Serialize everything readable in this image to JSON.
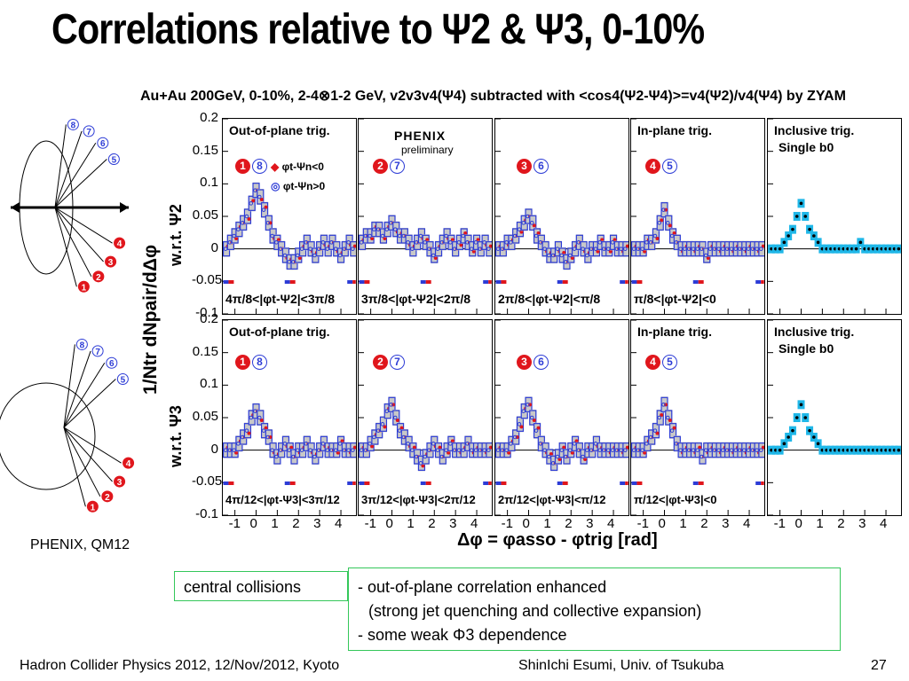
{
  "slide": {
    "title": "Correlations relative to Ψ2 & Ψ3, 0-10%",
    "subtitle": "Au+Au 200GeV, 0-10%, 2-4⊗1-2 GeV, v2v3v4(Ψ4) subtracted with <cos4(Ψ2-Ψ4)>=v4(Ψ2)/v4(Ψ4) by ZYAM",
    "phenix_logo": "PHENIX",
    "phenix_preliminary": "preliminary",
    "phenix_qm": "PHENIX, QM12",
    "ylabel_main": "1/Ntr dNpair/dΔφ",
    "ylabel_row1": "w.r.t. Ψ2",
    "ylabel_row2": "w.r.t. Ψ3",
    "xlabel": "Δφ = φasso - φtrig [rad]",
    "legend_neg": "φt-Ψn<0",
    "legend_pos": "φt-Ψn>0",
    "central_collisions": "central collisions",
    "notes": [
      "- out-of-plane correlation enhanced",
      "(strong jet quenching and collective expansion)",
      "- some weak Φ3 dependence"
    ],
    "footer_left": "Hadron Collider Physics 2012, 12/Nov/2012, Kyoto",
    "footer_mid": "ShinIchi Esumi, Univ. of Tsukuba",
    "page_number": "27"
  },
  "panels": {
    "row1_titles": [
      "Out-of-plane trig.",
      "",
      "",
      "In-plane trig.",
      "Inclusive trig."
    ],
    "row2_titles": [
      "Out-of-plane trig.",
      "",
      "",
      "In-plane trig.",
      "Inclusive trig."
    ],
    "single_b0": "Single b0",
    "row1_ranges": [
      "4π/8<|φt-Ψ2|<3π/8",
      "3π/8<|φt-Ψ2|<2π/8",
      "2π/8<|φt-Ψ2|<π/8",
      "π/8<|φt-Ψ2|<0",
      ""
    ],
    "row2_ranges": [
      "4π/12<|φt-Ψ3|<3π/12",
      "3π/12<|φt-Ψ3|<2π/12",
      "2π/12<|φt-Ψ3|<π/12",
      "π/12<|φt-Ψ3|<0",
      ""
    ],
    "numbers_filled": [
      "1",
      "2",
      "3",
      "4"
    ],
    "numbers_open": [
      "8",
      "7",
      "6",
      "5"
    ],
    "yticks": [
      "0.2",
      "0.15",
      "0.1",
      "0.05",
      "0",
      "-0.05",
      "-0.1"
    ],
    "xticks": [
      "-1",
      "0",
      "1",
      "2",
      "3",
      "4"
    ]
  },
  "diagram": {
    "top_numbers": [
      "8",
      "7",
      "6",
      "5",
      "4",
      "3",
      "2",
      "1"
    ],
    "bottom_numbers": [
      "8",
      "7",
      "6",
      "5",
      "4",
      "3",
      "2",
      "1"
    ]
  },
  "colors": {
    "red": "#e0161c",
    "blue": "#2d3cd6",
    "cyan": "#1fb7e8",
    "green_border": "#34c75a",
    "gray_band": "#c8c8c8"
  },
  "chart_data": {
    "type": "scatter",
    "x": [
      -1.4,
      -1.2,
      -1.0,
      -0.8,
      -0.6,
      -0.4,
      -0.2,
      0.0,
      0.2,
      0.4,
      0.6,
      0.8,
      1.0,
      1.2,
      1.4,
      1.6,
      1.8,
      2.0,
      2.2,
      2.4,
      2.6,
      2.8,
      3.0,
      3.2,
      3.4,
      3.6,
      3.8,
      4.0,
      4.2,
      4.4,
      4.6
    ],
    "xlabel": "Δφ = φasso - φtrig [rad]",
    "ylabel": "1/Ntr dNpair/dΔφ",
    "xlim": [
      -1.57,
      4.71
    ],
    "ylim": [
      -0.1,
      0.2
    ],
    "panels": [
      {
        "row": 1,
        "col": 1,
        "values": [
          0.0,
          0.01,
          0.02,
          0.03,
          0.04,
          0.05,
          0.07,
          0.09,
          0.08,
          0.06,
          0.04,
          0.02,
          0.01,
          0.0,
          -0.01,
          -0.02,
          -0.02,
          -0.01,
          0.0,
          0.01,
          0.0,
          -0.01,
          0.0,
          0.01,
          0.0,
          0.01,
          0.0,
          -0.01,
          0.0,
          0.01,
          0.0
        ]
      },
      {
        "row": 1,
        "col": 2,
        "values": [
          0.01,
          0.02,
          0.02,
          0.03,
          0.03,
          0.02,
          0.03,
          0.04,
          0.03,
          0.02,
          0.02,
          0.01,
          0.0,
          0.01,
          0.02,
          0.01,
          0.0,
          -0.01,
          0.0,
          0.01,
          0.02,
          0.01,
          0.0,
          0.01,
          0.02,
          0.01,
          0.0,
          0.01,
          0.0,
          0.01,
          0.0
        ]
      },
      {
        "row": 1,
        "col": 3,
        "values": [
          0.0,
          0.0,
          0.01,
          0.01,
          0.02,
          0.03,
          0.04,
          0.05,
          0.04,
          0.02,
          0.01,
          0.0,
          -0.01,
          -0.01,
          0.0,
          -0.01,
          -0.02,
          -0.01,
          0.0,
          0.01,
          0.0,
          -0.01,
          0.0,
          0.0,
          0.01,
          0.0,
          0.0,
          0.01,
          0.0,
          0.0,
          0.0
        ]
      },
      {
        "row": 1,
        "col": 4,
        "values": [
          0.0,
          0.0,
          0.0,
          0.01,
          0.01,
          0.02,
          0.04,
          0.06,
          0.04,
          0.02,
          0.01,
          0.0,
          0.0,
          0.0,
          0.0,
          0.0,
          0.0,
          -0.01,
          0.0,
          0.0,
          0.0,
          0.0,
          0.0,
          0.0,
          0.0,
          0.0,
          0.0,
          0.0,
          0.0,
          0.0,
          0.0
        ]
      },
      {
        "row": 1,
        "col": 5,
        "values": [
          0.0,
          0.0,
          0.0,
          0.01,
          0.02,
          0.03,
          0.05,
          0.07,
          0.05,
          0.03,
          0.02,
          0.01,
          0.0,
          0.0,
          0.0,
          0.0,
          0.0,
          0.0,
          0.0,
          0.0,
          0.0,
          0.01,
          0.0,
          0.0,
          0.0,
          0.0,
          0.0,
          0.0,
          0.0,
          0.0,
          0.0
        ]
      },
      {
        "row": 2,
        "col": 1,
        "values": [
          0.0,
          0.0,
          0.0,
          0.01,
          0.02,
          0.03,
          0.05,
          0.06,
          0.05,
          0.03,
          0.02,
          0.0,
          -0.01,
          0.0,
          0.01,
          0.0,
          -0.01,
          0.0,
          0.0,
          0.01,
          0.0,
          -0.01,
          0.0,
          0.01,
          0.0,
          0.0,
          0.0,
          0.01,
          0.0,
          0.0,
          0.0
        ]
      },
      {
        "row": 2,
        "col": 2,
        "values": [
          0.0,
          0.0,
          0.01,
          0.02,
          0.03,
          0.04,
          0.06,
          0.07,
          0.05,
          0.03,
          0.02,
          0.01,
          0.0,
          -0.01,
          -0.02,
          -0.01,
          0.0,
          0.01,
          0.0,
          -0.01,
          0.0,
          0.01,
          0.0,
          0.0,
          0.0,
          0.01,
          0.0,
          0.0,
          0.0,
          0.0,
          0.0
        ]
      },
      {
        "row": 2,
        "col": 3,
        "values": [
          0.0,
          0.0,
          0.0,
          0.01,
          0.02,
          0.04,
          0.06,
          0.07,
          0.05,
          0.03,
          0.01,
          0.0,
          -0.01,
          -0.02,
          -0.01,
          0.0,
          -0.01,
          0.0,
          0.01,
          0.0,
          -0.01,
          0.0,
          0.0,
          0.01,
          0.0,
          0.0,
          0.0,
          0.0,
          0.0,
          0.0,
          0.0
        ]
      },
      {
        "row": 2,
        "col": 4,
        "values": [
          0.0,
          0.0,
          0.0,
          0.01,
          0.02,
          0.03,
          0.05,
          0.07,
          0.05,
          0.03,
          0.01,
          0.0,
          0.0,
          0.0,
          0.0,
          0.0,
          -0.01,
          0.0,
          0.0,
          0.0,
          0.0,
          0.0,
          0.0,
          0.0,
          0.0,
          0.0,
          0.0,
          0.0,
          0.0,
          0.0,
          0.0
        ]
      },
      {
        "row": 2,
        "col": 5,
        "values": [
          0.0,
          0.0,
          0.0,
          0.01,
          0.02,
          0.03,
          0.05,
          0.07,
          0.05,
          0.03,
          0.02,
          0.01,
          0.0,
          0.0,
          0.0,
          0.0,
          0.0,
          0.0,
          0.0,
          0.0,
          0.0,
          0.0,
          0.0,
          0.0,
          0.0,
          0.0,
          0.0,
          0.0,
          0.0,
          0.0,
          0.0
        ]
      }
    ]
  }
}
